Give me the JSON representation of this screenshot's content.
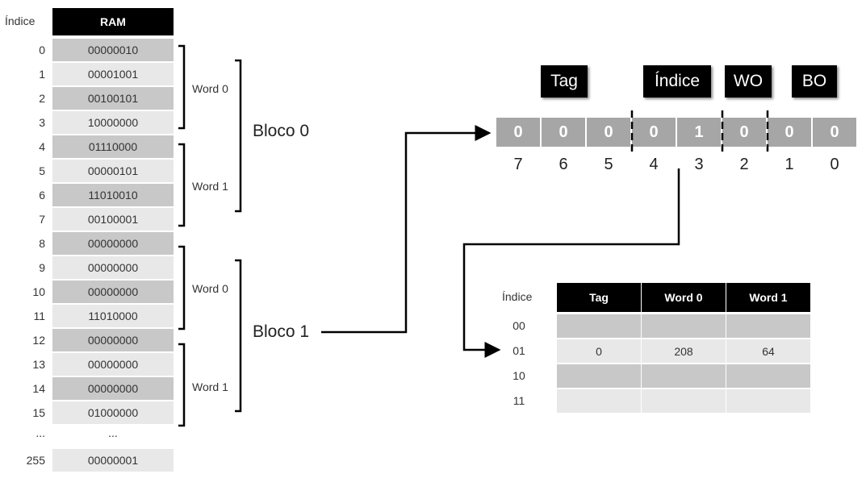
{
  "ram": {
    "index_header": "Índice",
    "header": "RAM",
    "rows": [
      {
        "index": "0",
        "value": "00000010"
      },
      {
        "index": "1",
        "value": "00001001"
      },
      {
        "index": "2",
        "value": "00100101"
      },
      {
        "index": "3",
        "value": "10000000"
      },
      {
        "index": "4",
        "value": "01110000"
      },
      {
        "index": "5",
        "value": "00000101"
      },
      {
        "index": "6",
        "value": "11010010"
      },
      {
        "index": "7",
        "value": "00100001"
      },
      {
        "index": "8",
        "value": "00000000"
      },
      {
        "index": "9",
        "value": "00000000"
      },
      {
        "index": "10",
        "value": "00000000"
      },
      {
        "index": "11",
        "value": "11010000"
      },
      {
        "index": "12",
        "value": "00000000"
      },
      {
        "index": "13",
        "value": "00000000"
      },
      {
        "index": "14",
        "value": "00000000"
      },
      {
        "index": "15",
        "value": "01000000"
      }
    ],
    "ellipsis_index": "...",
    "ellipsis_value": "...",
    "last": {
      "index": "255",
      "value": "00000001"
    }
  },
  "words": [
    "Word 0",
    "Word 1",
    "Word 0",
    "Word 1"
  ],
  "blocks": [
    "Bloco 0",
    "Bloco 1"
  ],
  "address": {
    "fields": {
      "tag": "Tag",
      "index": "Índice",
      "wo": "WO",
      "bo": "BO"
    },
    "bits": [
      "0",
      "0",
      "0",
      "0",
      "1",
      "0",
      "0",
      "0"
    ],
    "positions": [
      "7",
      "6",
      "5",
      "4",
      "3",
      "2",
      "1",
      "0"
    ]
  },
  "cache": {
    "index_header": "Índice",
    "headers": [
      "Tag",
      "Word 0",
      "Word 1"
    ],
    "rows": [
      {
        "index": "00",
        "tag": "",
        "word0": "",
        "word1": ""
      },
      {
        "index": "01",
        "tag": "0",
        "word0": "208",
        "word1": "64"
      },
      {
        "index": "10",
        "tag": "",
        "word0": "",
        "word1": ""
      },
      {
        "index": "11",
        "tag": "",
        "word0": "",
        "word1": ""
      }
    ]
  },
  "colors": {
    "dark_gray": "#c8c8c8",
    "light_gray": "#e8e8e8",
    "bit_gray": "#a6a6a6",
    "header_black": "#000000"
  }
}
